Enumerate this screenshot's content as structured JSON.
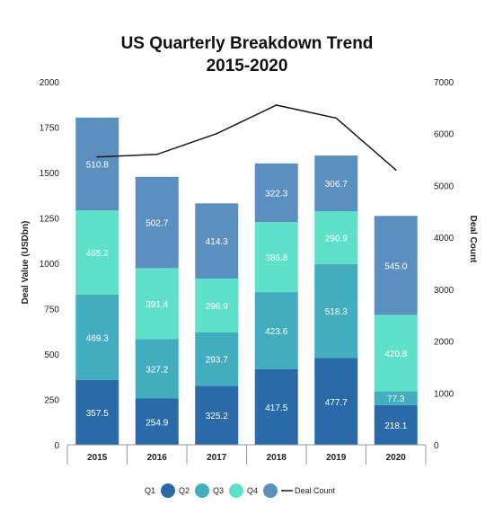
{
  "chart_data": {
    "type": "bar",
    "stacked": true,
    "title_lines": [
      "US Quarterly Breakdown Trend",
      "2015-2020"
    ],
    "categories": [
      "2015",
      "2016",
      "2017",
      "2018",
      "2019",
      "2020"
    ],
    "ylabel": "Deal Value (USDbn)",
    "y2label": "Deal Count",
    "ylim": [
      0,
      2000
    ],
    "y2lim": [
      0,
      7000
    ],
    "yticks": [
      "0",
      "250",
      "500",
      "750",
      "1000",
      "1250",
      "1500",
      "1750",
      "2000"
    ],
    "y2ticks": [
      "0",
      "1000",
      "2000",
      "3000",
      "4000",
      "5000",
      "6000",
      "7000"
    ],
    "series": [
      {
        "name": "Q1",
        "color": "#2b6aa8",
        "values": [
          357.5,
          254.9,
          325.2,
          417.5,
          477.7,
          218.1
        ],
        "labels": [
          "357.5",
          "254.9",
          "325.2",
          "417.5",
          "477.7",
          "218.1"
        ]
      },
      {
        "name": "Q2",
        "color": "#41adbf",
        "values": [
          469.3,
          327.2,
          293.7,
          423.6,
          518.3,
          77.3
        ],
        "labels": [
          "469.3",
          "327.2",
          "293.7",
          "423.6",
          "518.3",
          "77.3"
        ]
      },
      {
        "name": "Q3",
        "color": "#5fe0c8",
        "values": [
          465.2,
          391.4,
          296.9,
          386.8,
          290.9,
          420.8
        ],
        "labels": [
          "465.2",
          "391.4",
          "296.9",
          "386.8",
          "290.9",
          "420.8"
        ]
      },
      {
        "name": "Q4",
        "color": "#5b8fc0",
        "values": [
          510.8,
          502.7,
          414.3,
          322.3,
          306.7,
          545.0
        ],
        "labels": [
          "510.8",
          "502.7",
          "414.3",
          "322.3",
          "306.7",
          "545.0"
        ]
      }
    ],
    "line": {
      "name": "Deal Count",
      "color": "#1a1a1a",
      "values": [
        5550,
        5600,
        6000,
        6550,
        6300,
        5300
      ]
    },
    "legend_position": "bottom",
    "grid": false
  }
}
